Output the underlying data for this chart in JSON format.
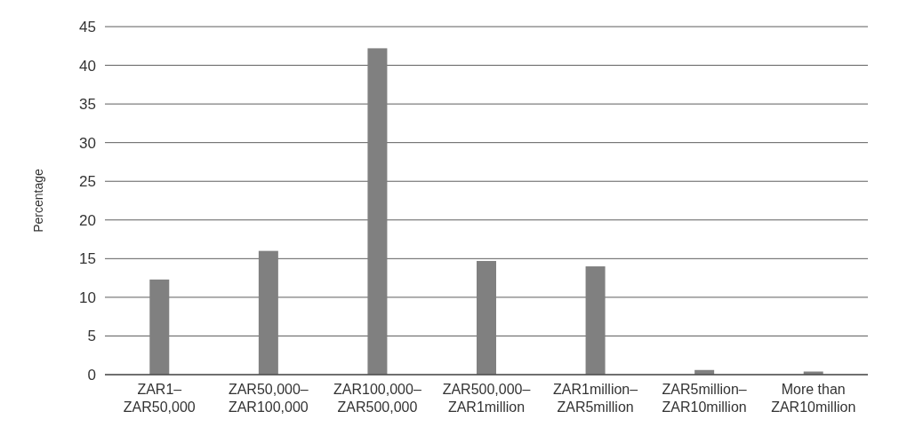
{
  "chart_data": {
    "type": "bar",
    "ylabel": "Percentage",
    "categories": [
      "ZAR1–\nZAR50,000",
      "ZAR50,000–\nZAR100,000",
      "ZAR100,000–\nZAR500,000",
      "ZAR500,000–\nZAR1million",
      "ZAR1million–\nZAR5million",
      "ZAR5million–\nZAR10million",
      "More than\nZAR10million"
    ],
    "values": [
      12.3,
      16.0,
      42.2,
      14.7,
      14.0,
      0.6,
      0.4
    ],
    "color": "#808080",
    "ylim": [
      0,
      45
    ],
    "yticks": [
      0,
      5,
      10,
      15,
      20,
      25,
      30,
      35,
      40,
      45
    ],
    "grid": "y"
  }
}
